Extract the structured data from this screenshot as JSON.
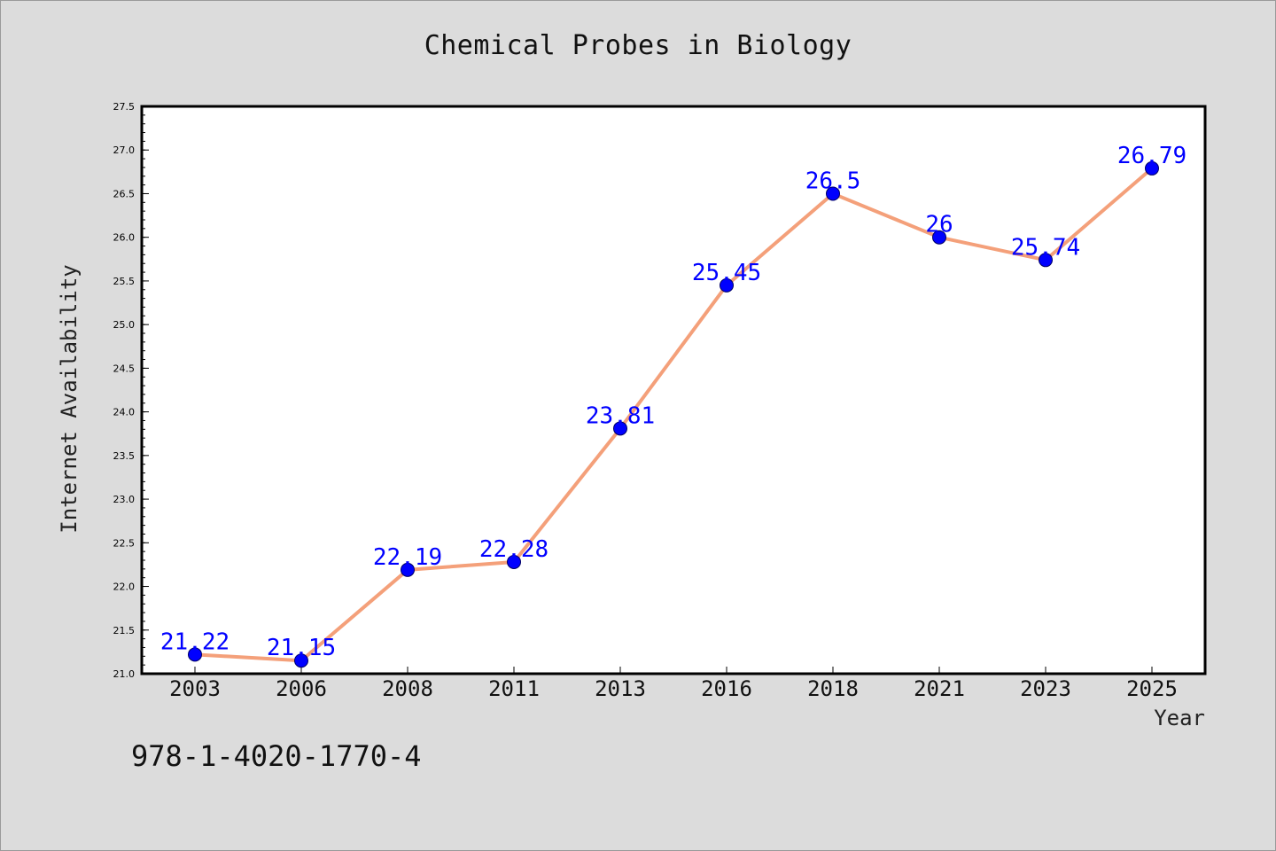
{
  "chart_data": {
    "type": "line",
    "title": "Chemical Probes in Biology",
    "xlabel": "Year",
    "ylabel": "Internet Availability",
    "categories": [
      "2003",
      "2006",
      "2008",
      "2011",
      "2013",
      "2016",
      "2018",
      "2021",
      "2023",
      "2025"
    ],
    "series": [
      {
        "values": [
          21.22,
          21.15,
          22.19,
          22.28,
          23.81,
          25.45,
          26.5,
          26,
          25.74,
          26.79
        ],
        "data_labels": [
          "21.22",
          "21.15",
          "22.19",
          "22.28",
          "23.81",
          "25.45",
          "26.5",
          "26",
          "25.74",
          "26.79"
        ],
        "line_color": "#f4a07a",
        "marker_color": "#0000ff"
      }
    ],
    "ylim": [
      21.0,
      27.5
    ],
    "yticks": [
      "21.0",
      "21.5",
      "22.0",
      "22.5",
      "23.0",
      "23.5",
      "24.0",
      "24.5",
      "25.0",
      "25.5",
      "26.0",
      "26.5",
      "27.0",
      "27.5"
    ],
    "grid": false,
    "legend": "none"
  },
  "annotation": "978-1-4020-1770-4",
  "colors": {
    "background": "#dcdcdc",
    "plot_background": "#ffffff",
    "label_color": "#0000ff"
  }
}
